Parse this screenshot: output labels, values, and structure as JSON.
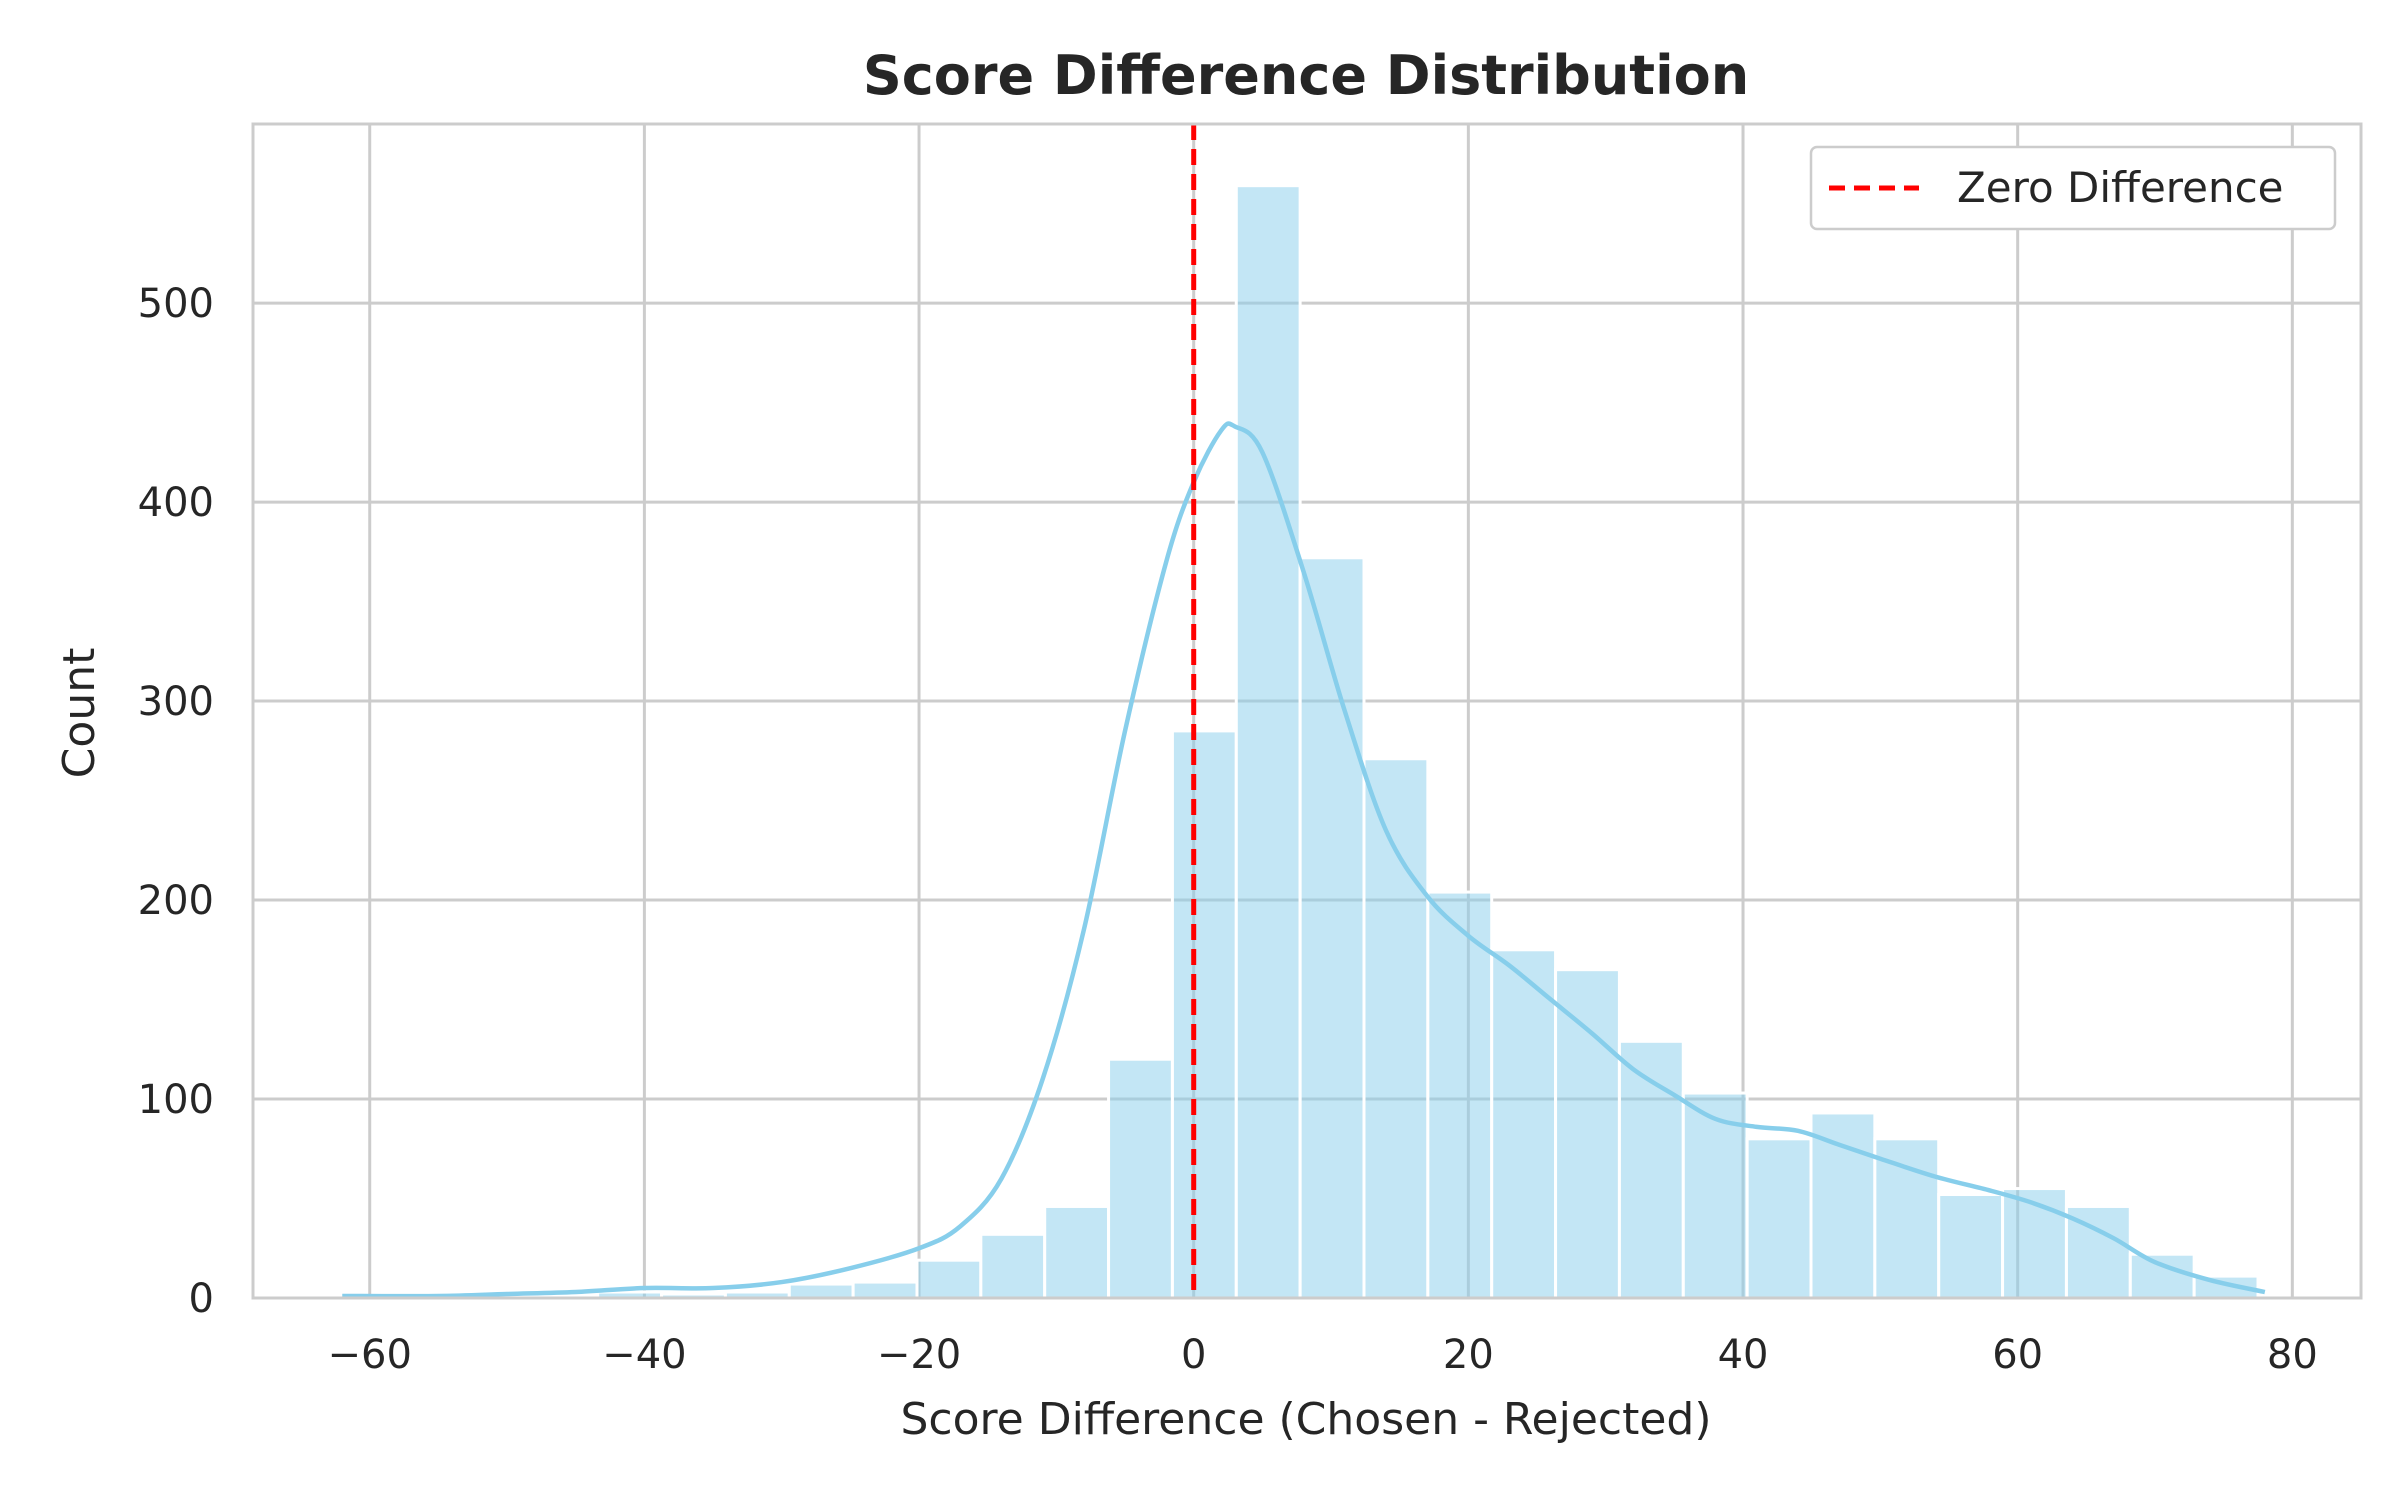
{
  "chart_data": {
    "type": "bar",
    "title": "Score Difference Distribution",
    "xlabel": "Score Difference (Chosen - Rejected)",
    "ylabel": "Count",
    "xlim": [
      -68.5,
      85
    ],
    "ylim": [
      0,
      590
    ],
    "xticks": [
      -60,
      -40,
      -20,
      0,
      20,
      40,
      60,
      80
    ],
    "xtick_labels": [
      "−60",
      "−40",
      "−20",
      "0",
      "20",
      "40",
      "60",
      "80"
    ],
    "yticks": [
      0,
      100,
      200,
      300,
      400,
      500
    ],
    "ytick_labels": [
      "0",
      "100",
      "200",
      "300",
      "400",
      "500"
    ],
    "grid": true,
    "legend_position": "top-right",
    "bar_color": "#87ceeb",
    "kde_color": "#87ceeb",
    "reference_line_color": "#ff0000",
    "bins": {
      "edges": [
        -62,
        -57.35,
        -52.7,
        -48.05,
        -43.4,
        -38.75,
        -34.1,
        -29.45,
        -24.8,
        -20.15,
        -15.5,
        -10.85,
        -6.2,
        -1.55,
        3.1,
        7.75,
        12.4,
        17.05,
        21.7,
        26.35,
        31.0,
        35.65,
        40.3,
        44.95,
        49.6,
        54.25,
        58.9,
        63.55,
        68.2,
        72.85,
        77.5
      ],
      "counts": [
        1,
        0,
        0,
        0,
        3,
        2,
        3,
        7,
        8,
        19,
        32,
        46,
        120,
        285,
        559,
        372,
        271,
        204,
        175,
        165,
        129,
        103,
        80,
        93,
        80,
        52,
        55,
        46,
        22,
        11
      ]
    },
    "kde": {
      "x": [
        -62,
        -55,
        -50,
        -45,
        -40,
        -35,
        -30,
        -25,
        -20,
        -17,
        -14,
        -11,
        -8,
        -5,
        -2,
        0,
        2,
        3,
        5,
        8,
        11,
        14,
        17,
        20,
        23,
        26,
        29,
        32,
        35,
        38,
        41,
        44,
        47,
        50,
        54,
        58,
        61,
        64,
        67,
        70,
        74,
        78
      ],
      "y": [
        1,
        1,
        2,
        3,
        5,
        5,
        8,
        15,
        25,
        36,
        60,
        110,
        185,
        285,
        370,
        410,
        436,
        438,
        425,
        365,
        295,
        235,
        202,
        182,
        167,
        150,
        133,
        115,
        102,
        90,
        86,
        84,
        77,
        70,
        61,
        54,
        48,
        40,
        30,
        18,
        9,
        3
      ]
    },
    "reference_line": {
      "x": 0,
      "label": "Zero Difference"
    }
  }
}
